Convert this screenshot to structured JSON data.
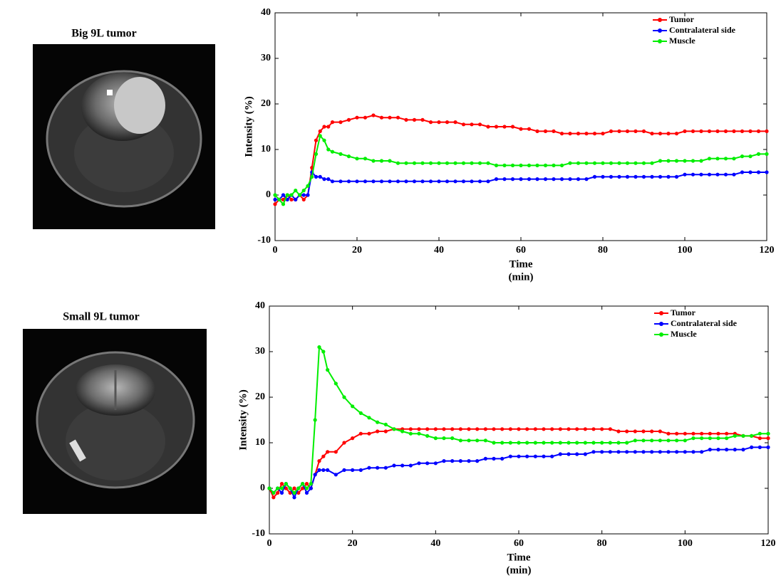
{
  "chart_data": [
    {
      "type": "line",
      "title": "Big 9L tumor",
      "ylabel": "Intensity (%)",
      "xlabel": [
        "Time",
        "(min)"
      ],
      "x": [
        0,
        1,
        2,
        3,
        4,
        5,
        6,
        7,
        8,
        9,
        10,
        11,
        12,
        13,
        14,
        16,
        18,
        20,
        22,
        24,
        26,
        28,
        30,
        32,
        34,
        36,
        38,
        40,
        42,
        44,
        46,
        48,
        50,
        52,
        54,
        56,
        58,
        60,
        62,
        64,
        66,
        68,
        70,
        72,
        74,
        76,
        78,
        80,
        82,
        84,
        86,
        88,
        90,
        92,
        94,
        96,
        98,
        100,
        102,
        104,
        106,
        108,
        110,
        112,
        114,
        116,
        118,
        120
      ],
      "xlim": [
        0,
        120
      ],
      "xticks": [
        0,
        20,
        40,
        60,
        80,
        100,
        120
      ],
      "ylim": [
        -10,
        40
      ],
      "yticks": [
        -10,
        0,
        10,
        20,
        30,
        40
      ],
      "legend": "upper right",
      "series": [
        {
          "name": "Tumor",
          "color": "#ff0000",
          "values": [
            -2,
            -1,
            -1,
            0,
            -1,
            -1,
            0,
            -1,
            0,
            6,
            12,
            14,
            15,
            15,
            16,
            16,
            16.5,
            17,
            17,
            17.5,
            17,
            17,
            17,
            16.5,
            16.5,
            16.5,
            16,
            16,
            16,
            16,
            15.5,
            15.5,
            15.5,
            15,
            15,
            15,
            15,
            14.5,
            14.5,
            14,
            14,
            14,
            13.5,
            13.5,
            13.5,
            13.5,
            13.5,
            13.5,
            14,
            14,
            14,
            14,
            14,
            13.5,
            13.5,
            13.5,
            13.5,
            14,
            14,
            14,
            14,
            14,
            14,
            14,
            14,
            14,
            14,
            14
          ]
        },
        {
          "name": "Contralateral side",
          "color": "#0000ff",
          "values": [
            -1,
            -1,
            0,
            -1,
            0,
            -1,
            0,
            0,
            0,
            5,
            4,
            4,
            3.5,
            3.5,
            3,
            3,
            3,
            3,
            3,
            3,
            3,
            3,
            3,
            3,
            3,
            3,
            3,
            3,
            3,
            3,
            3,
            3,
            3,
            3,
            3.5,
            3.5,
            3.5,
            3.5,
            3.5,
            3.5,
            3.5,
            3.5,
            3.5,
            3.5,
            3.5,
            3.5,
            4,
            4,
            4,
            4,
            4,
            4,
            4,
            4,
            4,
            4,
            4,
            4.5,
            4.5,
            4.5,
            4.5,
            4.5,
            4.5,
            4.5,
            5,
            5,
            5,
            5
          ]
        },
        {
          "name": "Muscle",
          "color": "#00ee00",
          "values": [
            0,
            -1,
            -2,
            0,
            0,
            1,
            0,
            1,
            2,
            4,
            9,
            13,
            12,
            10,
            9.5,
            9,
            8.5,
            8,
            8,
            7.5,
            7.5,
            7.5,
            7,
            7,
            7,
            7,
            7,
            7,
            7,
            7,
            7,
            7,
            7,
            7,
            6.5,
            6.5,
            6.5,
            6.5,
            6.5,
            6.5,
            6.5,
            6.5,
            6.5,
            7,
            7,
            7,
            7,
            7,
            7,
            7,
            7,
            7,
            7,
            7,
            7.5,
            7.5,
            7.5,
            7.5,
            7.5,
            7.5,
            8,
            8,
            8,
            8,
            8.5,
            8.5,
            9,
            9
          ]
        }
      ]
    },
    {
      "type": "line",
      "title": "Small 9L tumor",
      "ylabel": "Intensity (%)",
      "xlabel": [
        "Time",
        "(min)"
      ],
      "x": [
        0,
        1,
        2,
        3,
        4,
        5,
        6,
        7,
        8,
        9,
        10,
        11,
        12,
        13,
        14,
        16,
        18,
        20,
        22,
        24,
        26,
        28,
        30,
        32,
        34,
        36,
        38,
        40,
        42,
        44,
        46,
        48,
        50,
        52,
        54,
        56,
        58,
        60,
        62,
        64,
        66,
        68,
        70,
        72,
        74,
        76,
        78,
        80,
        82,
        84,
        86,
        88,
        90,
        92,
        94,
        96,
        98,
        100,
        102,
        104,
        106,
        108,
        110,
        112,
        114,
        116,
        118,
        120
      ],
      "xlim": [
        0,
        120
      ],
      "xticks": [
        0,
        20,
        40,
        60,
        80,
        100,
        120
      ],
      "ylim": [
        -10,
        40
      ],
      "yticks": [
        -10,
        0,
        10,
        20,
        30,
        40
      ],
      "legend": "upper right",
      "series": [
        {
          "name": "Tumor",
          "color": "#ff0000",
          "values": [
            0,
            -2,
            -1,
            1,
            0,
            -1,
            0,
            -1,
            0,
            1,
            0,
            3,
            6,
            7,
            8,
            8,
            10,
            11,
            12,
            12,
            12.5,
            12.5,
            13,
            13,
            13,
            13,
            13,
            13,
            13,
            13,
            13,
            13,
            13,
            13,
            13,
            13,
            13,
            13,
            13,
            13,
            13,
            13,
            13,
            13,
            13,
            13,
            13,
            13,
            13,
            12.5,
            12.5,
            12.5,
            12.5,
            12.5,
            12.5,
            12,
            12,
            12,
            12,
            12,
            12,
            12,
            12,
            12,
            11.5,
            11.5,
            11,
            11
          ]
        },
        {
          "name": "Contralateral side",
          "color": "#0000ff",
          "values": [
            0,
            -1,
            0,
            -1,
            1,
            0,
            -2,
            0,
            1,
            -1,
            0,
            3,
            4,
            4,
            4,
            3,
            4,
            4,
            4,
            4.5,
            4.5,
            4.5,
            5,
            5,
            5,
            5.5,
            5.5,
            5.5,
            6,
            6,
            6,
            6,
            6,
            6.5,
            6.5,
            6.5,
            7,
            7,
            7,
            7,
            7,
            7,
            7.5,
            7.5,
            7.5,
            7.5,
            8,
            8,
            8,
            8,
            8,
            8,
            8,
            8,
            8,
            8,
            8,
            8,
            8,
            8,
            8.5,
            8.5,
            8.5,
            8.5,
            8.5,
            9,
            9,
            9
          ]
        },
        {
          "name": "Muscle",
          "color": "#00ee00",
          "values": [
            0,
            -1,
            0,
            0,
            1,
            0,
            -1,
            0,
            1,
            0,
            1,
            15,
            31,
            30,
            26,
            23,
            20,
            18,
            16.5,
            15.5,
            14.5,
            14,
            13,
            12.5,
            12,
            12,
            11.5,
            11,
            11,
            11,
            10.5,
            10.5,
            10.5,
            10.5,
            10,
            10,
            10,
            10,
            10,
            10,
            10,
            10,
            10,
            10,
            10,
            10,
            10,
            10,
            10,
            10,
            10,
            10.5,
            10.5,
            10.5,
            10.5,
            10.5,
            10.5,
            10.5,
            11,
            11,
            11,
            11,
            11,
            11.5,
            11.5,
            11.5,
            12,
            12
          ]
        }
      ]
    }
  ]
}
